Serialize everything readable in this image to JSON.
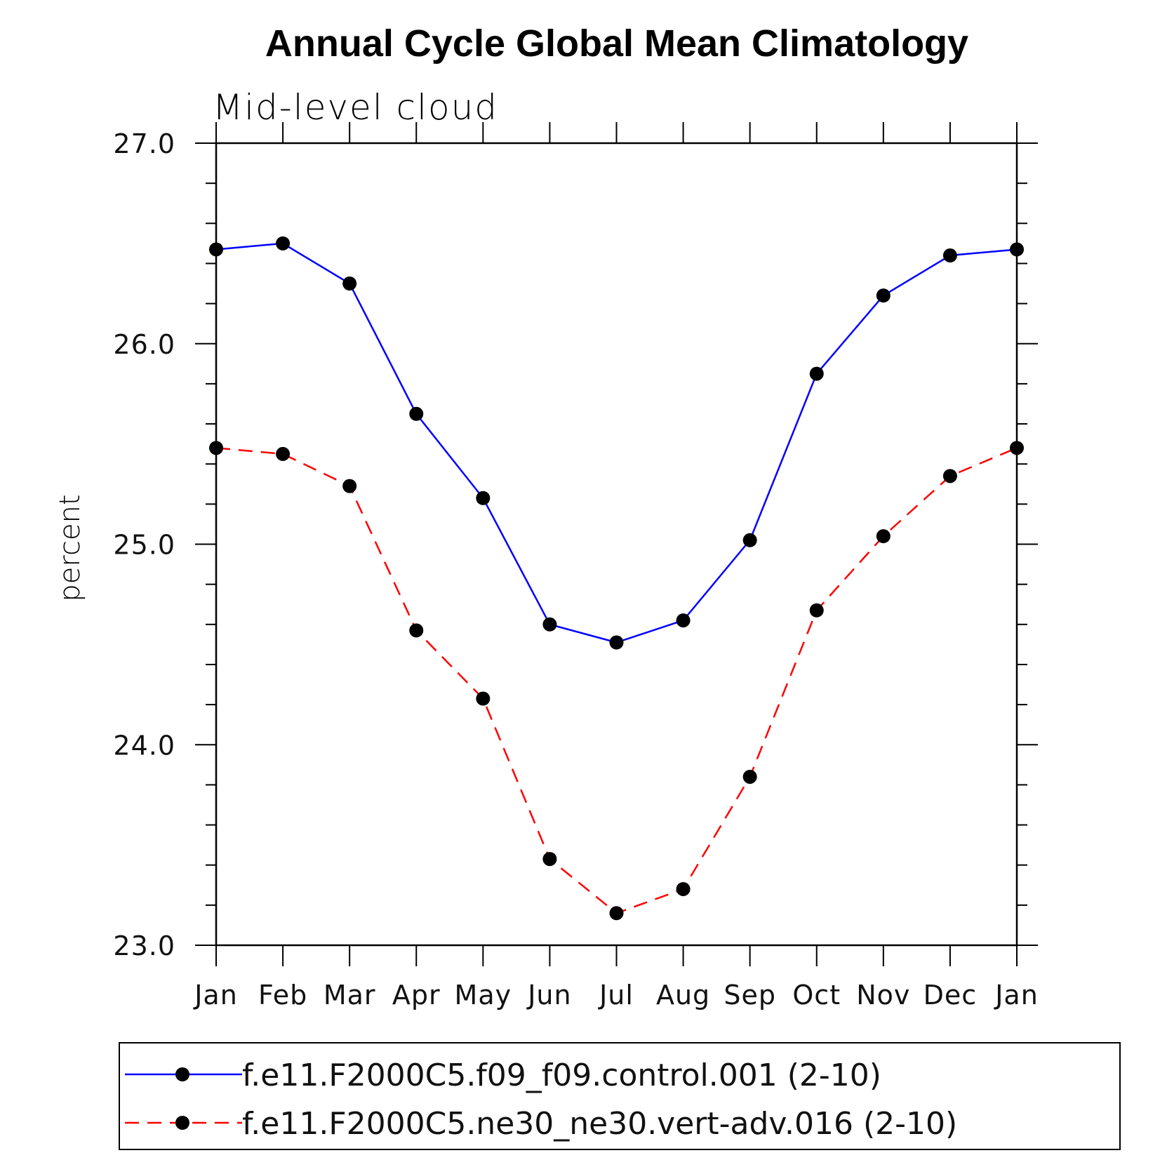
{
  "chart_data": {
    "type": "line",
    "title": "Annual Cycle Global Mean Climatology",
    "subtitle": "Mid-level cloud",
    "xlabel": "",
    "ylabel": "percent",
    "categories": [
      "Jan",
      "Feb",
      "Mar",
      "Apr",
      "May",
      "Jun",
      "Jul",
      "Aug",
      "Sep",
      "Oct",
      "Nov",
      "Dec",
      "Jan"
    ],
    "ylim": [
      23.0,
      27.0
    ],
    "yticks": [
      "23.0",
      "24.0",
      "25.0",
      "26.0",
      "27.0"
    ],
    "y_minor_step": 0.2,
    "grid": false,
    "legend_position": "bottom",
    "series": [
      {
        "name": "f.e11.F2000C5.f09_f09.control.001 (2-10)",
        "color": "#0000ff",
        "line_style": "solid",
        "marker": "filled-circle",
        "values": [
          26.47,
          26.5,
          26.3,
          25.65,
          25.23,
          24.6,
          24.51,
          24.62,
          25.02,
          25.85,
          26.24,
          26.44,
          26.47
        ]
      },
      {
        "name": "f.e11.F2000C5.ne30_ne30.vert-adv.016 (2-10)",
        "color": "#ff0000",
        "line_style": "dashed",
        "marker": "filled-circle",
        "values": [
          25.48,
          25.45,
          25.29,
          24.57,
          24.23,
          23.43,
          23.16,
          23.28,
          23.84,
          24.67,
          25.04,
          25.34,
          25.48
        ]
      }
    ]
  }
}
